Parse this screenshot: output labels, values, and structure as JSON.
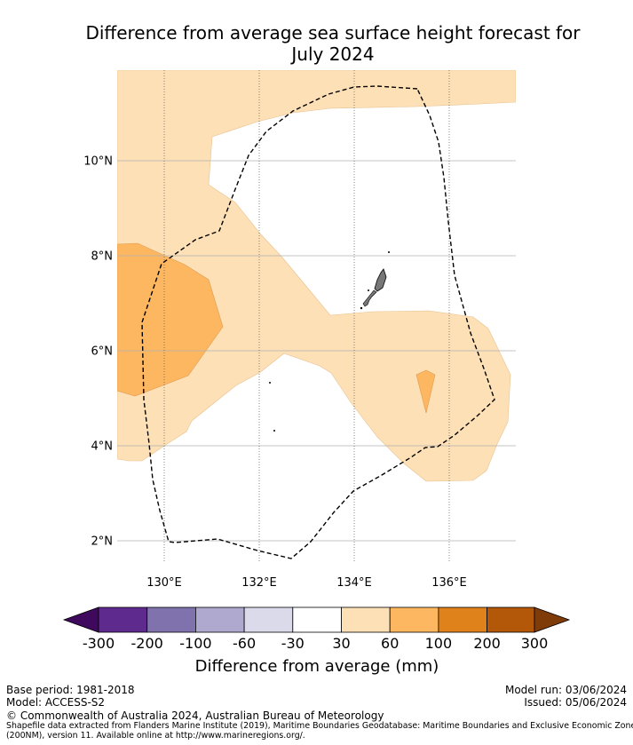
{
  "title": {
    "line1": "Difference from average sea surface height forecast for",
    "line2": "July 2024"
  },
  "map": {
    "lat_ticks": [
      "10°N",
      "8°N",
      "6°N",
      "4°N",
      "2°N"
    ],
    "lon_ticks": [
      "130°E",
      "132°E",
      "134°E",
      "136°E"
    ],
    "boundary": "Palau Exclusive Economic Zone (dashed)"
  },
  "colorbar": {
    "colors": [
      "#3f0a5e",
      "#5e2a8e",
      "#8073ad",
      "#afa9d0",
      "#dadaeb",
      "#ffffff",
      "#fde0b6",
      "#fdb761",
      "#e0821c",
      "#b35808",
      "#7f3b08"
    ],
    "tick_labels": [
      "-300",
      "-200",
      "-100",
      "-60",
      "-30",
      "30",
      "60",
      "100",
      "200",
      "300"
    ],
    "label": "Difference from average (mm)"
  },
  "footer": {
    "base_period": "Base period: 1981-2018",
    "model": "Model: ACCESS-S2",
    "model_run": "Model run: 03/06/2024",
    "issued": "Issued: 05/06/2024",
    "copyright": "© Commonwealth of Australia 2024, Australian Bureau of Meteorology",
    "shapefile_1": "Shapefile data extracted from Flanders Marine Institute (2019), Maritime Boundaries Geodatabase: Maritime Boundaries and Exclusive Economic Zones",
    "shapefile_2": "(200NM), version 11. Available online at http://www.marineregions.org/."
  }
}
